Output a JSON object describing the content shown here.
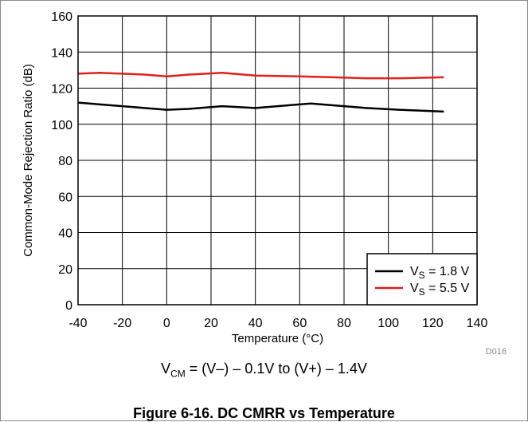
{
  "chart_data": {
    "type": "line",
    "xlabel": "Temperature (°C)",
    "ylabel": "Common-Mode Rejection Ratio (dB)",
    "xlim": [
      -40,
      140
    ],
    "ylim": [
      0,
      160
    ],
    "x_ticks": [
      -40,
      -20,
      0,
      20,
      40,
      60,
      80,
      100,
      120,
      140
    ],
    "y_ticks": [
      0,
      20,
      40,
      60,
      80,
      100,
      120,
      140,
      160
    ],
    "grid": true,
    "legend_position": "bottom-right",
    "series": [
      {
        "name": "V_S = 1.8 V",
        "legend_main": "V",
        "legend_sub": "S",
        "legend_rest": " = 1.8 V",
        "color": "#000000",
        "x": [
          -40,
          -30,
          -20,
          -10,
          0,
          10,
          25,
          40,
          50,
          65,
          80,
          90,
          105,
          125
        ],
        "y": [
          112,
          111,
          110,
          109,
          108,
          108.5,
          110,
          109,
          110,
          111.5,
          110,
          109,
          108,
          107
        ]
      },
      {
        "name": "V_S = 5.5 V",
        "legend_main": "V",
        "legend_sub": "S",
        "legend_rest": " = 5.5 V",
        "color": "#e0201c",
        "x": [
          -40,
          -30,
          -20,
          -10,
          0,
          10,
          25,
          40,
          60,
          75,
          90,
          105,
          125
        ],
        "y": [
          128,
          128.5,
          128,
          127.5,
          126.5,
          127.5,
          128.5,
          127,
          126.5,
          126,
          125.5,
          125.5,
          126
        ]
      }
    ],
    "code": "D016"
  },
  "note": {
    "prefix": "V",
    "sub": "CM",
    "rest": " = (V–) – 0.1V to (V+) – 1.4V"
  },
  "caption": "Figure 6-16. DC CMRR vs Temperature"
}
